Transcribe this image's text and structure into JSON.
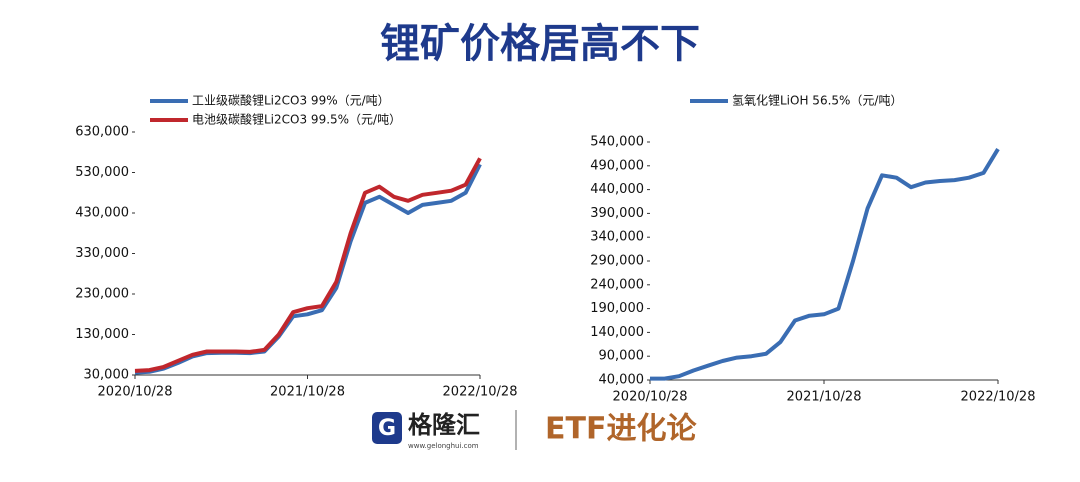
{
  "title": "锂矿价格居高不下",
  "footer": {
    "brand": "格隆汇",
    "site": "www.gelonghui.com",
    "column": "ETF进化论"
  },
  "chart_data": [
    {
      "type": "line",
      "x": [
        "2020/10/28",
        "2020/11/28",
        "2020/12/28",
        "2021/01/28",
        "2021/02/28",
        "2021/03/28",
        "2021/04/28",
        "2021/05/28",
        "2021/06/28",
        "2021/07/28",
        "2021/08/28",
        "2021/09/28",
        "2021/10/28",
        "2021/11/28",
        "2021/12/28",
        "2022/01/28",
        "2022/02/28",
        "2022/03/28",
        "2022/04/28",
        "2022/05/28",
        "2022/06/28",
        "2022/07/28",
        "2022/08/28",
        "2022/09/28",
        "2022/10/28"
      ],
      "series": [
        {
          "name": "工业级碳酸锂Li2CO3 99%（元/吨）",
          "color": "#3a6db3",
          "values": [
            36000,
            38000,
            46000,
            60000,
            76000,
            84000,
            85000,
            85000,
            84000,
            88000,
            125000,
            175000,
            180000,
            190000,
            245000,
            360000,
            455000,
            470000,
            450000,
            430000,
            450000,
            455000,
            460000,
            480000,
            550000
          ]
        },
        {
          "name": "电池级碳酸锂Li2CO3 99.5%（元/吨）",
          "color": "#c0272d",
          "values": [
            40000,
            42000,
            50000,
            65000,
            80000,
            88000,
            88000,
            88000,
            87000,
            92000,
            130000,
            185000,
            195000,
            200000,
            260000,
            380000,
            480000,
            495000,
            470000,
            460000,
            475000,
            480000,
            485000,
            500000,
            565000
          ]
        }
      ],
      "ylim": [
        30000,
        630000
      ],
      "yticks": [
        {
          "value": 30000,
          "label": "30,000"
        },
        {
          "value": 130000,
          "label": "130,000"
        },
        {
          "value": 230000,
          "label": "230,000"
        },
        {
          "value": 330000,
          "label": "330,000"
        },
        {
          "value": 430000,
          "label": "430,000"
        },
        {
          "value": 530000,
          "label": "530,000"
        },
        {
          "value": 630000,
          "label": "630,000"
        }
      ],
      "xticks": [
        "2020/10/28",
        "2021/10/28",
        "2022/10/28"
      ]
    },
    {
      "type": "line",
      "x": [
        "2020/10/28",
        "2020/11/28",
        "2020/12/28",
        "2021/01/28",
        "2021/02/28",
        "2021/03/28",
        "2021/04/28",
        "2021/05/28",
        "2021/06/28",
        "2021/07/28",
        "2021/08/28",
        "2021/09/28",
        "2021/10/28",
        "2021/11/28",
        "2021/12/28",
        "2022/01/28",
        "2022/02/28",
        "2022/03/28",
        "2022/04/28",
        "2022/05/28",
        "2022/06/28",
        "2022/07/28",
        "2022/08/28",
        "2022/09/28",
        "2022/10/28"
      ],
      "series": [
        {
          "name": "氢氧化锂LiOH 56.5%（元/吨）",
          "color": "#3a6db3",
          "values": [
            43000,
            43000,
            48000,
            60000,
            70000,
            80000,
            87000,
            90000,
            95000,
            120000,
            165000,
            175000,
            178000,
            190000,
            290000,
            400000,
            470000,
            465000,
            445000,
            455000,
            458000,
            460000,
            465000,
            475000,
            525000
          ]
        }
      ],
      "ylim": [
        40000,
        540000
      ],
      "yticks": [
        {
          "value": 40000,
          "label": "40,000"
        },
        {
          "value": 90000,
          "label": "90,000"
        },
        {
          "value": 140000,
          "label": "140,000"
        },
        {
          "value": 190000,
          "label": "190,000"
        },
        {
          "value": 240000,
          "label": "240,000"
        },
        {
          "value": 290000,
          "label": "290,000"
        },
        {
          "value": 340000,
          "label": "340,000"
        },
        {
          "value": 390000,
          "label": "390,000"
        },
        {
          "value": 440000,
          "label": "440,000"
        },
        {
          "value": 490000,
          "label": "490,000"
        },
        {
          "value": 540000,
          "label": "540,000"
        }
      ],
      "xticks": [
        "2020/10/28",
        "2021/10/28",
        "2022/10/28"
      ]
    }
  ]
}
